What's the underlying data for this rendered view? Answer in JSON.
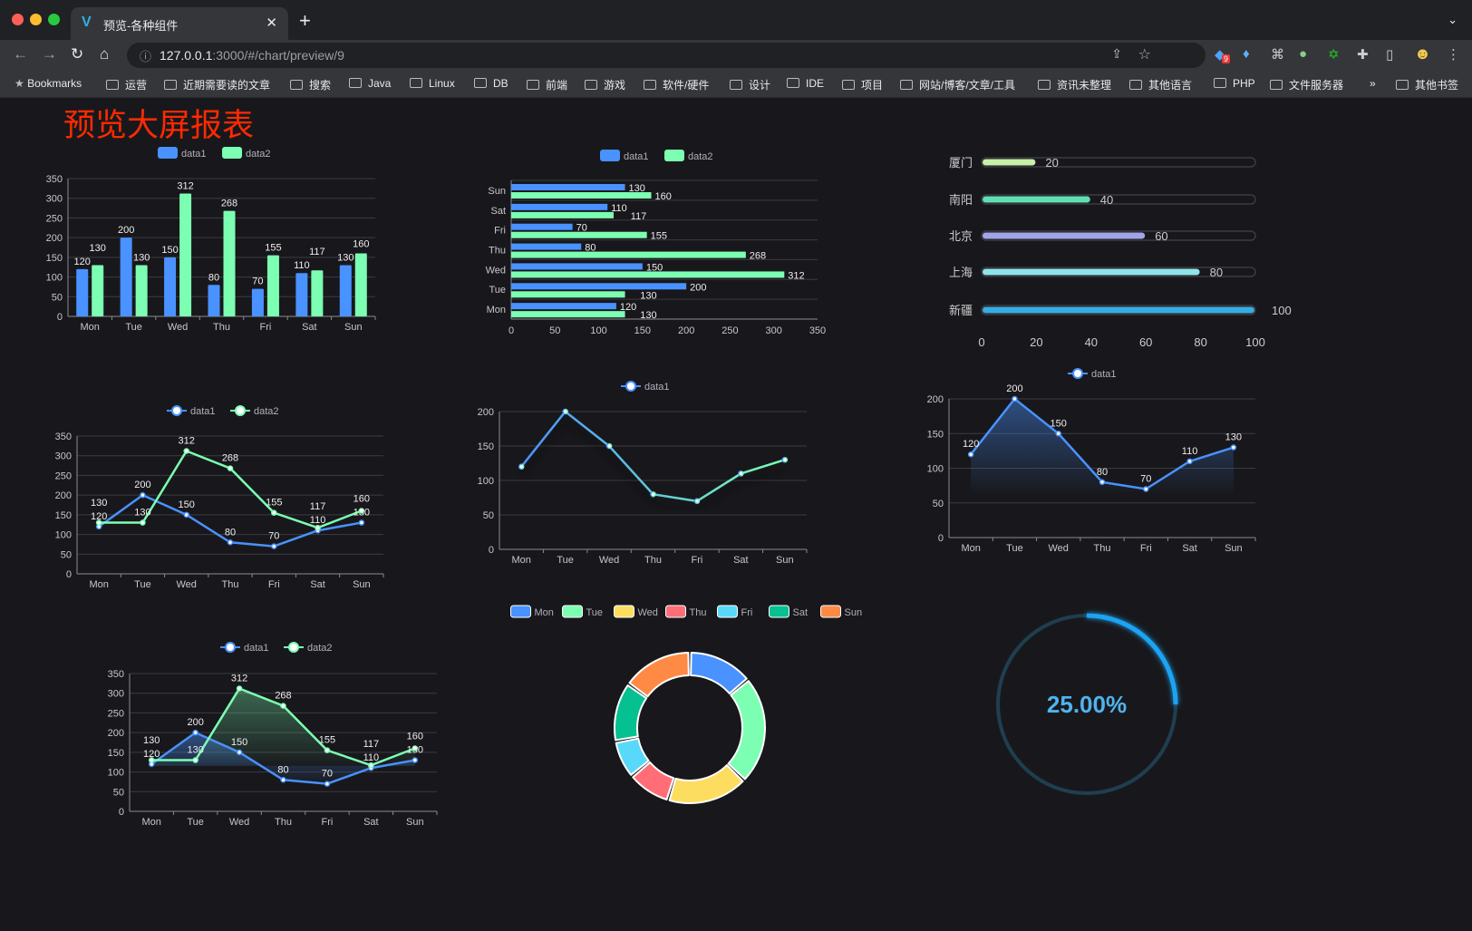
{
  "browser": {
    "tab_title": "预览-各种组件",
    "url_host": "127.0.0.1",
    "url_rest": ":3000/#/chart/preview/9",
    "bookmarks": [
      "Bookmarks",
      "运营",
      "近期需要读的文章",
      "搜索",
      "Java",
      "Linux",
      "DB",
      "前端",
      "游戏",
      "软件/硬件",
      "设计",
      "IDE",
      "项目",
      "网站/博客/文章/工具",
      "资讯未整理",
      "其他语言",
      "PHP",
      "文件服务器"
    ],
    "overflow": "»",
    "other_bookmarks": "其他书签",
    "extension_badge": "9"
  },
  "page": {
    "title": "预览大屏报表"
  },
  "colors": {
    "data1": "#4992ff",
    "data2": "#7cffb2",
    "title": "#ff2a00",
    "bg": "#18181c",
    "pie": [
      "#4992ff",
      "#7cffb2",
      "#fddd60",
      "#ff6e76",
      "#58d9f9",
      "#05c091",
      "#ff8a45"
    ],
    "progress": [
      "#c8f0a8",
      "#5fe0b4",
      "#a0a4e8",
      "#8fe4ea",
      "#36ade2"
    ],
    "gauge": "#1ea3f2"
  },
  "chart_data": [
    {
      "type": "bar",
      "legend": [
        "data1",
        "data2"
      ],
      "categories": [
        "Mon",
        "Tue",
        "Wed",
        "Thu",
        "Fri",
        "Sat",
        "Sun"
      ],
      "series": [
        {
          "name": "data1",
          "values": [
            120,
            200,
            150,
            80,
            70,
            110,
            130
          ]
        },
        {
          "name": "data2",
          "values": [
            130,
            130,
            312,
            268,
            155,
            117,
            160
          ]
        }
      ],
      "ylim": [
        0,
        350
      ],
      "yticks": [
        "0",
        "50",
        "100",
        "150",
        "200",
        "250",
        "300",
        "350"
      ],
      "data_labels": true,
      "grid": true
    },
    {
      "type": "bar",
      "orientation": "horizontal",
      "legend": [
        "data1",
        "data2"
      ],
      "categories": [
        "Mon",
        "Tue",
        "Wed",
        "Thu",
        "Fri",
        "Sat",
        "Sun"
      ],
      "series": [
        {
          "name": "data1",
          "values": [
            120,
            200,
            150,
            80,
            70,
            110,
            130
          ]
        },
        {
          "name": "data2",
          "values": [
            130,
            130,
            312,
            268,
            155,
            117,
            160
          ]
        }
      ],
      "xlim": [
        0,
        350
      ],
      "xticks": [
        "0",
        "50",
        "100",
        "150",
        "200",
        "250",
        "300",
        "350"
      ],
      "data_labels": true,
      "grid": true
    },
    {
      "type": "bar",
      "orientation": "horizontal",
      "style": "progress",
      "categories": [
        "厦门",
        "南阳",
        "北京",
        "上海",
        "新疆"
      ],
      "values": [
        20,
        40,
        60,
        80,
        100
      ],
      "xlim": [
        0,
        100
      ],
      "xticks": [
        "0",
        "20",
        "40",
        "60",
        "80",
        "100"
      ],
      "data_labels": true
    },
    {
      "type": "line",
      "legend": [
        "data1",
        "data2"
      ],
      "categories": [
        "Mon",
        "Tue",
        "Wed",
        "Thu",
        "Fri",
        "Sat",
        "Sun"
      ],
      "series": [
        {
          "name": "data1",
          "values": [
            120,
            200,
            150,
            80,
            70,
            110,
            130
          ]
        },
        {
          "name": "data2",
          "values": [
            130,
            130,
            312,
            268,
            155,
            117,
            160
          ]
        }
      ],
      "ylim": [
        0,
        350
      ],
      "yticks": [
        "0",
        "50",
        "100",
        "150",
        "200",
        "250",
        "300",
        "350"
      ],
      "data_labels": true,
      "grid": true
    },
    {
      "type": "line",
      "legend": [
        "data1"
      ],
      "categories": [
        "Mon",
        "Tue",
        "Wed",
        "Thu",
        "Fri",
        "Sat",
        "Sun"
      ],
      "series": [
        {
          "name": "data1",
          "values": [
            120,
            200,
            150,
            80,
            70,
            110,
            130
          ]
        }
      ],
      "ylim": [
        0,
        200
      ],
      "yticks": [
        "0",
        "50",
        "100",
        "150",
        "200"
      ],
      "data_labels": false,
      "grid": true,
      "line_gradient": [
        "#4992ff",
        "#7cffb2"
      ]
    },
    {
      "type": "area",
      "legend": [
        "data1"
      ],
      "categories": [
        "Mon",
        "Tue",
        "Wed",
        "Thu",
        "Fri",
        "Sat",
        "Sun"
      ],
      "series": [
        {
          "name": "data1",
          "values": [
            120,
            200,
            150,
            80,
            70,
            110,
            130
          ]
        }
      ],
      "ylim": [
        0,
        200
      ],
      "yticks": [
        "0",
        "50",
        "100",
        "150",
        "200"
      ],
      "data_labels": true,
      "grid": true
    },
    {
      "type": "area",
      "legend": [
        "data1",
        "data2"
      ],
      "categories": [
        "Mon",
        "Tue",
        "Wed",
        "Thu",
        "Fri",
        "Sat",
        "Sun"
      ],
      "series": [
        {
          "name": "data1",
          "values": [
            120,
            200,
            150,
            80,
            70,
            110,
            130
          ]
        },
        {
          "name": "data2",
          "values": [
            130,
            130,
            312,
            268,
            155,
            117,
            160
          ]
        }
      ],
      "ylim": [
        0,
        350
      ],
      "yticks": [
        "0",
        "50",
        "100",
        "150",
        "200",
        "250",
        "300",
        "350"
      ],
      "data_labels": true,
      "grid": true
    },
    {
      "type": "pie",
      "style": "donut",
      "legend": [
        "Mon",
        "Tue",
        "Wed",
        "Thu",
        "Fri",
        "Sat",
        "Sun"
      ],
      "categories": [
        "Mon",
        "Tue",
        "Wed",
        "Thu",
        "Fri",
        "Sat",
        "Sun"
      ],
      "values": [
        120,
        200,
        150,
        80,
        70,
        110,
        130
      ]
    },
    {
      "type": "gauge",
      "value": 25,
      "max": 100,
      "label": "25.00%"
    }
  ]
}
